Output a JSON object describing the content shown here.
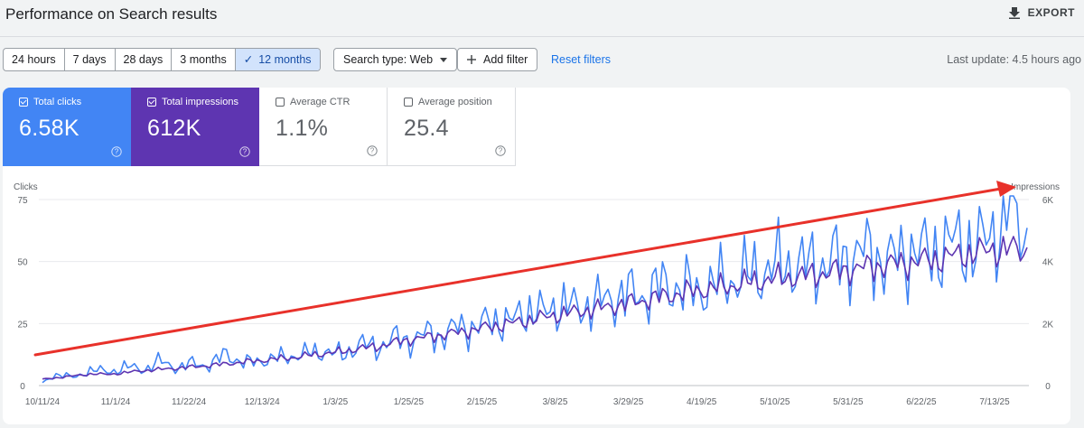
{
  "header": {
    "title": "Performance on Search results",
    "export_label": "EXPORT"
  },
  "toolbar": {
    "ranges": [
      {
        "label": "24 hours",
        "active": false
      },
      {
        "label": "7 days",
        "active": false
      },
      {
        "label": "28 days",
        "active": false
      },
      {
        "label": "3 months",
        "active": false
      },
      {
        "label": "12 months",
        "active": true
      }
    ],
    "search_type_label": "Search type: Web",
    "add_filter_label": "Add filter",
    "reset_label": "Reset filters",
    "last_update": "Last update: 4.5 hours ago"
  },
  "metrics": {
    "clicks": {
      "label": "Total clicks",
      "value": "6.58K",
      "checked": true,
      "color": "#4285f4"
    },
    "impressions": {
      "label": "Total impressions",
      "value": "612K",
      "checked": true,
      "color": "#5e35b1"
    },
    "ctr": {
      "label": "Average CTR",
      "value": "1.1%",
      "checked": false
    },
    "position": {
      "label": "Average position",
      "value": "25.4",
      "checked": false
    }
  },
  "chart_data": {
    "type": "line",
    "left_axis_label": "Clicks",
    "right_axis_label": "Impressions",
    "left_ticks": [
      "75",
      "50",
      "25",
      "0"
    ],
    "right_ticks": [
      "6K",
      "4K",
      "2K",
      "0"
    ],
    "left_ylim": [
      0,
      75
    ],
    "right_ylim": [
      0,
      6000
    ],
    "x_labels": [
      "10/11/24",
      "11/1/24",
      "11/22/24",
      "12/13/24",
      "1/3/25",
      "1/25/25",
      "2/15/25",
      "3/8/25",
      "3/29/25",
      "4/19/25",
      "5/10/25",
      "5/31/25",
      "6/22/25",
      "7/13/25"
    ],
    "grid": true,
    "series": [
      {
        "name": "Total clicks",
        "axis": "left",
        "color": "#4285f4",
        "values": [
          1,
          5,
          3,
          7,
          5,
          8,
          6,
          10,
          7,
          9,
          8,
          13,
          9,
          10,
          11,
          12,
          13,
          14,
          12,
          17,
          15,
          19,
          18,
          21,
          20,
          24,
          23,
          27,
          25,
          31,
          29,
          33,
          31,
          33,
          35,
          37,
          36,
          40,
          40,
          38,
          40,
          42,
          44,
          46,
          48,
          49,
          48,
          50,
          51,
          54,
          52,
          50,
          55,
          53,
          56,
          58,
          55,
          62,
          74,
          58
        ]
      },
      {
        "name": "Total impressions",
        "axis": "right",
        "color": "#5e35b1",
        "values": [
          200,
          260,
          320,
          380,
          360,
          420,
          480,
          520,
          560,
          600,
          650,
          700,
          760,
          800,
          860,
          900,
          980,
          1040,
          1100,
          1200,
          1250,
          1380,
          1480,
          1560,
          1640,
          1720,
          1820,
          1920,
          2000,
          2100,
          2200,
          2300,
          2380,
          2460,
          2550,
          2650,
          2750,
          2850,
          2950,
          3050,
          3120,
          3200,
          3300,
          3380,
          3450,
          3500,
          3560,
          3640,
          3720,
          3800,
          3860,
          3920,
          3980,
          4040,
          4120,
          4220,
          4300,
          4380,
          4420,
          4300
        ]
      }
    ]
  },
  "annotation": {
    "arrow_color": "#e8312a"
  }
}
